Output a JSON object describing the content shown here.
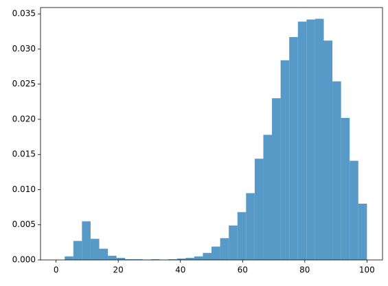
{
  "chart_data": {
    "type": "histogram",
    "color": "#5799c7",
    "bins": [
      0,
      2.78,
      5.56,
      8.33,
      11.11,
      13.89,
      16.67,
      19.44,
      22.22,
      25,
      27.78,
      30.56,
      33.33,
      36.11,
      38.89,
      41.67,
      44.44,
      47.22,
      50,
      52.78,
      55.56,
      58.33,
      61.11,
      63.89,
      66.67,
      69.44,
      72.22,
      75,
      77.78,
      80.56,
      83.33,
      86.11,
      88.89,
      91.67,
      94.44,
      97.22,
      100
    ],
    "values": [
      0,
      0.0005,
      0.0027,
      0.0055,
      0.003,
      0.0016,
      0.0006,
      0.0003,
      0.0001,
      0.0001,
      5e-05,
      0.0001,
      5e-05,
      0.0001,
      0.0002,
      0.0003,
      0.0005,
      0.001,
      0.0019,
      0.0031,
      0.0049,
      0.0068,
      0.0095,
      0.0144,
      0.0178,
      0.023,
      0.0284,
      0.0317,
      0.0339,
      0.0342,
      0.0343,
      0.0312,
      0.0254,
      0.0202,
      0.0141,
      0.008
    ],
    "xlim": [
      -5,
      105
    ],
    "ylim": [
      0,
      0.0359
    ],
    "xticks": [
      0,
      20,
      40,
      60,
      80,
      100
    ],
    "yticks": [
      {
        "value": 0,
        "label": "0.000"
      },
      {
        "value": 0.005,
        "label": "0.005"
      },
      {
        "value": 0.01,
        "label": "0.010"
      },
      {
        "value": 0.015,
        "label": "0.015"
      },
      {
        "value": 0.02,
        "label": "0.020"
      },
      {
        "value": 0.025,
        "label": "0.025"
      },
      {
        "value": 0.03,
        "label": "0.030"
      },
      {
        "value": 0.035,
        "label": "0.035"
      }
    ]
  }
}
